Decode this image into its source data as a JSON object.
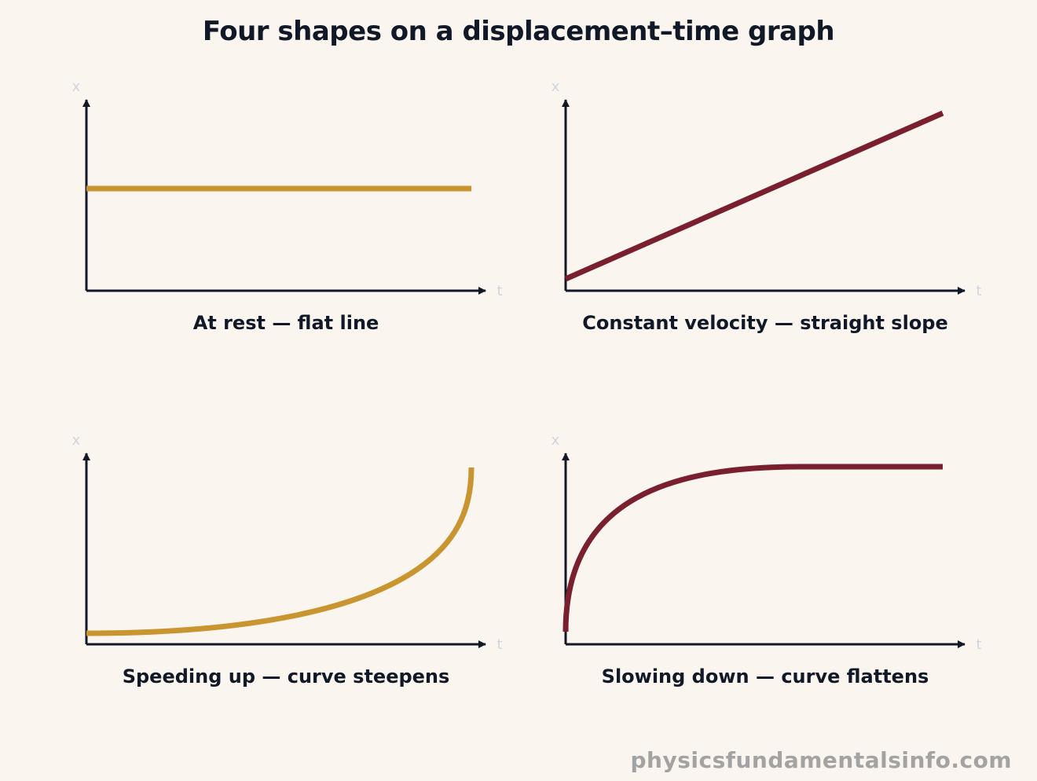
{
  "title": "Four shapes on a displacement–time graph",
  "footer": "physicsfundamentalsinfo.com",
  "colors": {
    "gold": "#c99530",
    "maroon": "#7a1f2e",
    "axis": "#111827",
    "axis_label": "#cfd5df",
    "background": "#faf6ef"
  },
  "panels": [
    {
      "id": "at-rest",
      "caption": "At rest — flat line",
      "x_axis": "t",
      "y_axis": "x",
      "shape": "flat",
      "color": "#c99530"
    },
    {
      "id": "constant-velocity",
      "caption": "Constant velocity — straight slope",
      "x_axis": "t",
      "y_axis": "x",
      "shape": "linear",
      "color": "#7a1f2e"
    },
    {
      "id": "speeding-up",
      "caption": "Speeding up — curve steepens",
      "x_axis": "t",
      "y_axis": "x",
      "shape": "concave-up",
      "color": "#c99530"
    },
    {
      "id": "slowing-down",
      "caption": "Slowing down — curve flattens",
      "x_axis": "t",
      "y_axis": "x",
      "shape": "concave-down",
      "color": "#7a1f2e"
    }
  ]
}
